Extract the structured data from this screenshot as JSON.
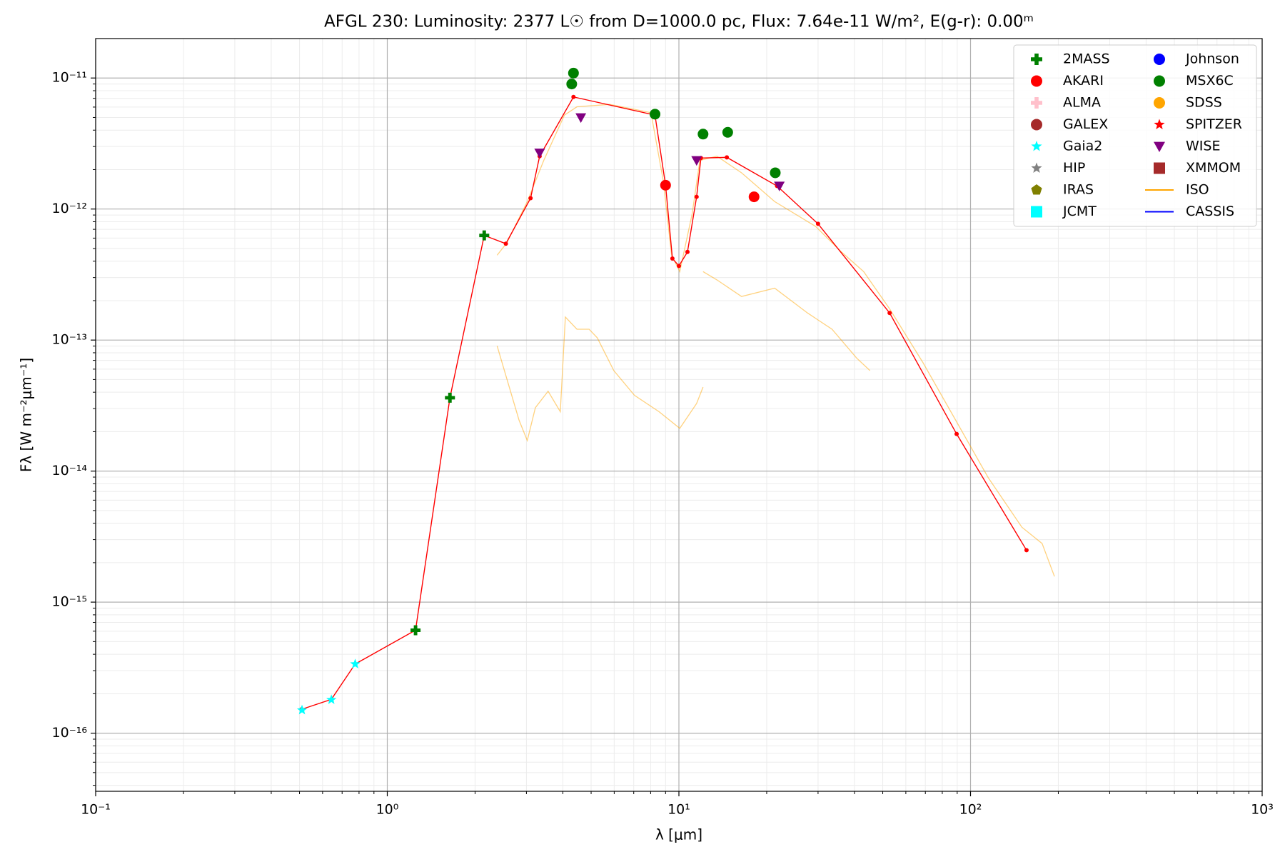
{
  "chart_data": {
    "type": "sed",
    "title": "AFGL 230:  Luminosity: 2377 L☉ from D=1000.0 pc, Flux: 7.64e-11 W/m², E(g-r): 0.00ᵐ",
    "x_label": "λ [μm]",
    "y_label": "Fλ [W m⁻²μm⁻¹]",
    "xscale": "log",
    "yscale": "log",
    "xlim": [
      0.1,
      1000
    ],
    "ylim": [
      3.6e-17,
      2e-11
    ],
    "xticks": [
      {
        "value": 0.1,
        "label": "10⁻¹"
      },
      {
        "value": 1,
        "label": "10⁰"
      },
      {
        "value": 10,
        "label": "10¹"
      },
      {
        "value": 100,
        "label": "10²"
      },
      {
        "value": 1000,
        "label": "10³"
      }
    ],
    "yticks": [
      {
        "value": 1e-16,
        "label": "10⁻¹⁶"
      },
      {
        "value": 1e-15,
        "label": "10⁻¹⁵"
      },
      {
        "value": 1e-14,
        "label": "10⁻¹⁴"
      },
      {
        "value": 1e-13,
        "label": "10⁻¹³"
      },
      {
        "value": 1e-12,
        "label": "10⁻¹²"
      },
      {
        "value": 1e-11,
        "label": "10⁻¹¹"
      }
    ],
    "grid": true,
    "minor_grid": true,
    "legend": "upper right",
    "legend_columns": 2,
    "sed_line": {
      "color": "#ff0000",
      "x": [
        0.508,
        0.643,
        0.776,
        1.25,
        1.64,
        2.15,
        2.55,
        3.1,
        3.33,
        4.35,
        8.28,
        9.0,
        9.5,
        10,
        10.7,
        11.5,
        11.9,
        14.6,
        21.7,
        30,
        52.8,
        89.6,
        155.6
      ],
      "values": [
        1.52e-16,
        1.81e-16,
        3.37e-16,
        6.11e-16,
        3.63e-14,
        6.29e-13,
        5.44e-13,
        1.21e-12,
        2.53e-12,
        7.17e-12,
        5.21e-12,
        1.52e-12,
        4.19e-13,
        3.68e-13,
        4.71e-13,
        1.24e-12,
        2.45e-12,
        2.48e-12,
        1.5e-12,
        7.71e-13,
        1.61e-13,
        1.92e-14,
        2.49e-15
      ]
    },
    "series": [
      {
        "name": "2MASS",
        "color": "#008000",
        "marker": "plus",
        "x": [
          1.25,
          1.64,
          2.15
        ],
        "values": [
          6.1e-16,
          3.63e-14,
          6.29e-13
        ]
      },
      {
        "name": "AKARI",
        "color": "#ff0000",
        "marker": "circle",
        "x": [
          9.0,
          18.1
        ],
        "values": [
          1.52e-12,
          1.24e-12
        ]
      },
      {
        "name": "ALMA",
        "color": "#ffc0cb",
        "marker": "plus",
        "x": [],
        "values": []
      },
      {
        "name": "GALEX",
        "color": "#a52a2a",
        "marker": "circle",
        "x": [],
        "values": []
      },
      {
        "name": "Gaia2",
        "color": "#00ffff",
        "marker": "star",
        "x": [
          0.51,
          0.643,
          0.776
        ],
        "values": [
          1.5e-16,
          1.8e-16,
          3.37e-16
        ]
      },
      {
        "name": "HIP",
        "color": "#808080",
        "marker": "star",
        "x": [],
        "values": []
      },
      {
        "name": "IRAS",
        "color": "#808000",
        "marker": "pentagon",
        "x": [],
        "values": []
      },
      {
        "name": "JCMT",
        "color": "#00ffff",
        "marker": "square",
        "x": [],
        "values": []
      },
      {
        "name": "Johnson",
        "color": "#0000ff",
        "marker": "circle",
        "x": [],
        "values": []
      },
      {
        "name": "MSX6C",
        "color": "#008000",
        "marker": "circle",
        "x": [
          4.35,
          4.29,
          8.28,
          12.1,
          14.7,
          21.4
        ],
        "values": [
          1.09e-11,
          9e-12,
          5.3e-12,
          3.73e-12,
          3.85e-12,
          1.89e-12
        ]
      },
      {
        "name": "SDSS",
        "color": "#ffa500",
        "marker": "circle",
        "x": [],
        "values": []
      },
      {
        "name": "SPITZER",
        "color": "#ff0000",
        "marker": "star",
        "x": [],
        "values": []
      },
      {
        "name": "WISE",
        "color": "#800080",
        "marker": "triangle",
        "x": [
          3.33,
          4.61,
          11.5,
          22.1
        ],
        "values": [
          2.68e-12,
          4.99e-12,
          2.35e-12,
          1.5e-12
        ]
      },
      {
        "name": "XMMOM",
        "color": "#a52a2a",
        "marker": "square",
        "x": [],
        "values": []
      },
      {
        "name": "ISO",
        "color": "#ffa500",
        "marker": "line",
        "x": [
          2.38,
          2.57,
          3.02,
          3.44,
          4.05,
          4.47,
          5.79,
          8.02,
          8.84,
          9.44,
          10.07,
          11.1,
          11.8,
          13.5,
          16.4,
          21.3,
          29.4,
          35.8,
          43.0,
          52.8,
          68.6,
          88.9,
          115,
          150,
          176,
          194,
          null,
          12.1,
          13.5,
          16.4,
          21.3,
          27.6,
          33.5,
          40.7,
          45.2,
          null,
          2.38,
          2.57,
          2.83,
          3.02,
          3.22,
          3.56,
          3.92,
          4.08,
          4.47,
          4.92,
          5.25,
          5.98,
          7.04,
          8.55,
          10.07,
          11.5,
          12.1
        ],
        "values": [
          4.44e-13,
          5.52e-13,
          1.14e-12,
          2.35e-12,
          5.21e-12,
          6.03e-12,
          6.29e-12,
          5.44e-12,
          1.64e-12,
          4.44e-13,
          3.33e-13,
          9.17e-13,
          2.35e-12,
          2.53e-12,
          1.89e-12,
          1.14e-12,
          7.38e-13,
          4.78e-13,
          3.33e-13,
          1.73e-13,
          6.76e-14,
          2.45e-14,
          8.91e-15,
          3.73e-15,
          2.8e-15,
          1.57e-15,
          null,
          3.33e-13,
          2.88e-13,
          2.15e-13,
          2.49e-13,
          1.61e-13,
          1.21e-13,
          7.28e-14,
          5.85e-14,
          null,
          9.04e-14,
          5.06e-14,
          2.45e-14,
          1.71e-14,
          3.05e-14,
          4.07e-14,
          2.84e-14,
          1.5e-13,
          1.21e-13,
          1.21e-13,
          1.04e-13,
          5.85e-14,
          3.79e-14,
          2.84e-14,
          2.12e-14,
          3.28e-14,
          4.38e-14
        ]
      },
      {
        "name": "CASSIS",
        "color": "#0000ff",
        "marker": "line",
        "x": [],
        "values": []
      }
    ]
  }
}
